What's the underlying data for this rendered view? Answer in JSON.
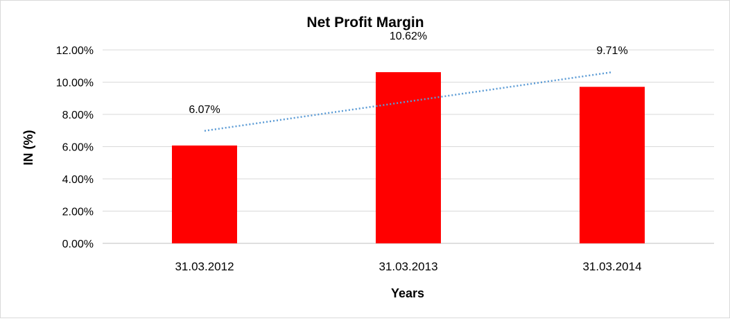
{
  "chart_data": {
    "type": "bar",
    "title": "Net Profit Margin",
    "xlabel": "Years",
    "ylabel": "IN (%)",
    "categories": [
      "31.03.2012",
      "31.03.2013",
      "31.03.2014"
    ],
    "series": [
      {
        "values": [
          6.07,
          10.62,
          9.71
        ],
        "data_labels": [
          "6.07%",
          "10.62%",
          "9.71%"
        ],
        "color": "#ff0000"
      }
    ],
    "trendline": {
      "type": "linear",
      "style": "dotted",
      "color": "#5b9bd5"
    },
    "ylim": [
      0,
      12
    ],
    "yticks": [
      "0.00%",
      "2.00%",
      "4.00%",
      "6.00%",
      "8.00%",
      "10.00%",
      "12.00%"
    ],
    "grid": true,
    "legend": "none"
  }
}
